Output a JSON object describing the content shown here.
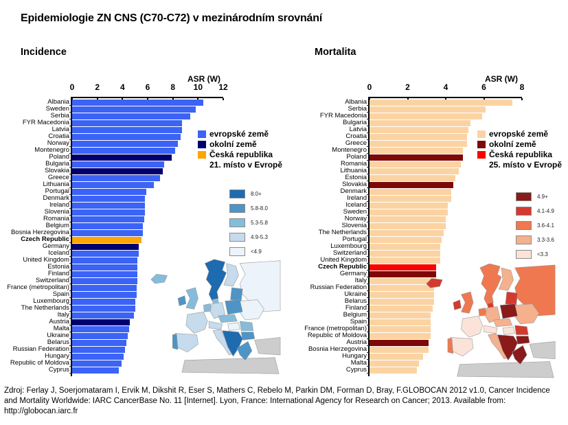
{
  "title": "Epidemiologie ZN CNS (C70-C72) v mezinárodním srovnání",
  "footer": "Zdroj: Ferlay J, Soerjomataram I, Ervik M, Dikshit R, Eser S, Mathers C, Rebelo M, Parkin DM, Forman D, Bray, F.GLOBOCAN 2012 v1.0, Cancer Incidence and Mortality Worldwide: IARC CancerBase No. 11 [Internet]. Lyon, France: International Agency for Research on Cancer; 2013. Available from: http://globocan.iarc.fr",
  "chart_data": [
    {
      "id": "incidence",
      "type": "bar",
      "orientation": "horizontal",
      "title": "Incidence",
      "xlabel": "ASR (W)",
      "xlim": [
        0,
        12
      ],
      "ticks": [
        0,
        2,
        4,
        6,
        8,
        10,
        12
      ],
      "rank_note": "21. místo v Evropě",
      "legend": [
        {
          "group": "eu",
          "label": "evropské země",
          "color": "#3B63F6"
        },
        {
          "group": "neighbor",
          "label": "okolní země",
          "color": "#00006E"
        },
        {
          "group": "cz",
          "label": "Česká republika",
          "color": "#FFA400"
        }
      ],
      "bars": [
        {
          "country": "Albania",
          "value": 10.4,
          "group": "eu"
        },
        {
          "country": "Sweden",
          "value": 9.8,
          "group": "eu"
        },
        {
          "country": "Serbia",
          "value": 9.4,
          "group": "eu"
        },
        {
          "country": "FYR Macedonia",
          "value": 8.7,
          "group": "eu"
        },
        {
          "country": "Latvia",
          "value": 8.7,
          "group": "eu"
        },
        {
          "country": "Croatia",
          "value": 8.6,
          "group": "eu"
        },
        {
          "country": "Norway",
          "value": 8.4,
          "group": "eu"
        },
        {
          "country": "Montenegro",
          "value": 8.2,
          "group": "eu"
        },
        {
          "country": "Poland",
          "value": 7.9,
          "group": "neighbor"
        },
        {
          "country": "Bulgaria",
          "value": 7.3,
          "group": "eu"
        },
        {
          "country": "Slovakia",
          "value": 7.2,
          "group": "neighbor"
        },
        {
          "country": "Greece",
          "value": 7.0,
          "group": "eu"
        },
        {
          "country": "Lithuania",
          "value": 6.5,
          "group": "eu"
        },
        {
          "country": "Portugal",
          "value": 5.9,
          "group": "eu"
        },
        {
          "country": "Denmark",
          "value": 5.8,
          "group": "eu"
        },
        {
          "country": "Ireland",
          "value": 5.8,
          "group": "eu"
        },
        {
          "country": "Slovenia",
          "value": 5.8,
          "group": "eu"
        },
        {
          "country": "Romania",
          "value": 5.7,
          "group": "eu"
        },
        {
          "country": "Belgium",
          "value": 5.6,
          "group": "eu"
        },
        {
          "country": "Bosnia Herzegovina",
          "value": 5.6,
          "group": "eu"
        },
        {
          "country": "Czech Republic",
          "value": 5.5,
          "group": "cz"
        },
        {
          "country": "Germany",
          "value": 5.3,
          "group": "neighbor"
        },
        {
          "country": "Iceland",
          "value": 5.3,
          "group": "eu"
        },
        {
          "country": "United Kingdom",
          "value": 5.2,
          "group": "eu"
        },
        {
          "country": "Estonia",
          "value": 5.2,
          "group": "eu"
        },
        {
          "country": "Finland",
          "value": 5.2,
          "group": "eu"
        },
        {
          "country": "Switzerland",
          "value": 5.2,
          "group": "eu"
        },
        {
          "country": "France (metropolitan)",
          "value": 5.1,
          "group": "eu"
        },
        {
          "country": "Spain",
          "value": 5.1,
          "group": "eu"
        },
        {
          "country": "Luxembourg",
          "value": 5.0,
          "group": "eu"
        },
        {
          "country": "The Netherlands",
          "value": 5.0,
          "group": "eu"
        },
        {
          "country": "Italy",
          "value": 4.9,
          "group": "eu"
        },
        {
          "country": "Austria",
          "value": 4.6,
          "group": "neighbor"
        },
        {
          "country": "Malta",
          "value": 4.5,
          "group": "eu"
        },
        {
          "country": "Ukraine",
          "value": 4.4,
          "group": "eu"
        },
        {
          "country": "Belarus",
          "value": 4.3,
          "group": "eu"
        },
        {
          "country": "Russian Federation",
          "value": 4.2,
          "group": "eu"
        },
        {
          "country": "Hungary",
          "value": 4.1,
          "group": "eu"
        },
        {
          "country": "Republic of Moldova",
          "value": 3.9,
          "group": "eu"
        },
        {
          "country": "Cyprus",
          "value": 3.7,
          "group": "eu"
        }
      ],
      "map": {
        "legend": [
          {
            "label": "8.0+",
            "color": "#1F6BB0"
          },
          {
            "label": "5.8-8.0",
            "color": "#4E94C6"
          },
          {
            "label": "5.3-5.8",
            "color": "#85BCDB"
          },
          {
            "label": "4.9-5.3",
            "color": "#C6DBEC"
          },
          {
            "label": "<4.9",
            "color": "#EDF3FA"
          }
        ],
        "regions": {
          "iceland": "#85BCDB",
          "scandinavia": "#1F6BB0",
          "finland": "#C6DBEC",
          "russia": "#EDF3FA",
          "baltics": "#4E94C6",
          "denmark": "#85BCDB",
          "uk": "#85BCDB",
          "ireland": "#4E94C6",
          "benelux": "#85BCDB",
          "germany": "#C6DBEC",
          "poland": "#4E94C6",
          "ukraine": "#EDF3FA",
          "czech_slovakia": "#85BCDB",
          "alpine": "#C6DBEC",
          "france": "#C6DBEC",
          "iberia": "#C6DBEC",
          "portugal": "#4E94C6",
          "italy": "#C6DBEC",
          "hungary": "#EDF3FA",
          "romania": "#85BCDB",
          "balkans": "#1F6BB0",
          "bulgaria": "#4E94C6",
          "greece": "#4E94C6",
          "turkey": "#CDCDCD",
          "africa": "#CDCDCD"
        }
      }
    },
    {
      "id": "mortalita",
      "type": "bar",
      "orientation": "horizontal",
      "title": "Mortalita",
      "xlabel": "ASR (W)",
      "xlim": [
        0,
        8
      ],
      "ticks": [
        0,
        2,
        4,
        6,
        8
      ],
      "rank_note": "25. místo v Evropě",
      "legend": [
        {
          "group": "eu",
          "label": "evropské země",
          "color": "#FBD3A3"
        },
        {
          "group": "neighbor",
          "label": "okolní země",
          "color": "#7E0808"
        },
        {
          "group": "cz",
          "label": "Česká republika",
          "color": "#F80400"
        }
      ],
      "bars": [
        {
          "country": "Albania",
          "value": 7.5,
          "group": "eu"
        },
        {
          "country": "Serbia",
          "value": 6.1,
          "group": "eu"
        },
        {
          "country": "FYR Macedonia",
          "value": 5.9,
          "group": "eu"
        },
        {
          "country": "Bulgaria",
          "value": 5.3,
          "group": "eu"
        },
        {
          "country": "Latvia",
          "value": 5.2,
          "group": "eu"
        },
        {
          "country": "Croatia",
          "value": 5.1,
          "group": "eu"
        },
        {
          "country": "Greece",
          "value": 5.1,
          "group": "eu"
        },
        {
          "country": "Montenegro",
          "value": 4.9,
          "group": "eu"
        },
        {
          "country": "Poland",
          "value": 4.9,
          "group": "neighbor"
        },
        {
          "country": "Romania",
          "value": 4.8,
          "group": "eu"
        },
        {
          "country": "Lithuania",
          "value": 4.7,
          "group": "eu"
        },
        {
          "country": "Estonia",
          "value": 4.5,
          "group": "eu"
        },
        {
          "country": "Slovakia",
          "value": 4.4,
          "group": "neighbor"
        },
        {
          "country": "Denmark",
          "value": 4.3,
          "group": "eu"
        },
        {
          "country": "Ireland",
          "value": 4.3,
          "group": "eu"
        },
        {
          "country": "Iceland",
          "value": 4.1,
          "group": "eu"
        },
        {
          "country": "Sweden",
          "value": 4.1,
          "group": "eu"
        },
        {
          "country": "Norway",
          "value": 4.0,
          "group": "eu"
        },
        {
          "country": "Slovenia",
          "value": 4.0,
          "group": "eu"
        },
        {
          "country": "The Netherlands",
          "value": 3.9,
          "group": "eu"
        },
        {
          "country": "Portugal",
          "value": 3.8,
          "group": "eu"
        },
        {
          "country": "Luxembourg",
          "value": 3.7,
          "group": "eu"
        },
        {
          "country": "Switzerland",
          "value": 3.7,
          "group": "eu"
        },
        {
          "country": "United Kingdom",
          "value": 3.7,
          "group": "eu"
        },
        {
          "country": "Czech Republic",
          "value": 3.5,
          "group": "cz"
        },
        {
          "country": "Germany",
          "value": 3.5,
          "group": "neighbor"
        },
        {
          "country": "Italy",
          "value": 3.5,
          "group": "eu"
        },
        {
          "country": "Russian Federation",
          "value": 3.4,
          "group": "eu"
        },
        {
          "country": "Ukraine",
          "value": 3.4,
          "group": "eu"
        },
        {
          "country": "Belarus",
          "value": 3.4,
          "group": "eu"
        },
        {
          "country": "Finland",
          "value": 3.3,
          "group": "eu"
        },
        {
          "country": "Belgium",
          "value": 3.2,
          "group": "eu"
        },
        {
          "country": "Spain",
          "value": 3.2,
          "group": "eu"
        },
        {
          "country": "France (metropolitan)",
          "value": 3.2,
          "group": "eu"
        },
        {
          "country": "Republic of Moldova",
          "value": 3.2,
          "group": "eu"
        },
        {
          "country": "Austria",
          "value": 3.1,
          "group": "neighbor"
        },
        {
          "country": "Bosnia Herzegovina",
          "value": 3.1,
          "group": "eu"
        },
        {
          "country": "Hungary",
          "value": 2.8,
          "group": "eu"
        },
        {
          "country": "Malta",
          "value": 2.6,
          "group": "eu"
        },
        {
          "country": "Cyprus",
          "value": 2.5,
          "group": "eu"
        }
      ],
      "map": {
        "legend": [
          {
            "label": "4.9+",
            "color": "#8B1A1A"
          },
          {
            "label": "4.1-4.9",
            "color": "#D23B2E"
          },
          {
            "label": "3.6-4.1",
            "color": "#F07850"
          },
          {
            "label": "3.3-3.6",
            "color": "#F5B08E"
          },
          {
            "label": "<3.3",
            "color": "#FBE3D9"
          }
        ],
        "regions": {
          "iceland": "#D23B2E",
          "scandinavia": "#F07850",
          "finland": "#F5B08E",
          "russia": "#F07850",
          "baltics": "#D23B2E",
          "denmark": "#D23B2E",
          "uk": "#F07850",
          "ireland": "#D23B2E",
          "benelux": "#F07850",
          "germany": "#F5B08E",
          "poland": "#8B1A1A",
          "ukraine": "#F5B08E",
          "czech_slovakia": "#F5B08E",
          "alpine": "#FBE3D9",
          "france": "#FBE3D9",
          "iberia": "#FBE3D9",
          "portugal": "#F07850",
          "italy": "#F5B08E",
          "hungary": "#FBE3D9",
          "romania": "#D23B2E",
          "balkans": "#8B1A1A",
          "bulgaria": "#8B1A1A",
          "greece": "#8B1A1A",
          "turkey": "#CDCDCD",
          "africa": "#CDCDCD"
        }
      }
    }
  ]
}
